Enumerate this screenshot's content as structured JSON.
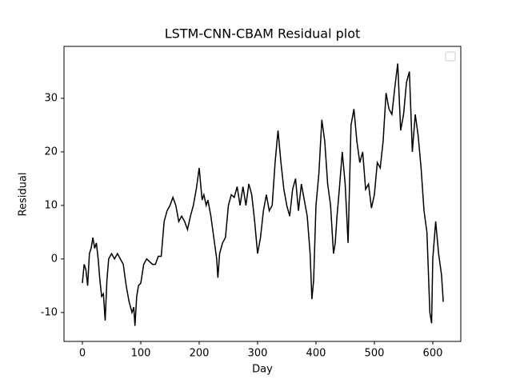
{
  "chart_data": {
    "type": "line",
    "title": "LSTM-CNN-CBAM Residual plot",
    "xlabel": "Day",
    "ylabel": "Residual",
    "x": [
      0,
      3,
      6,
      9,
      12,
      15,
      18,
      21,
      24,
      27,
      30,
      33,
      36,
      39,
      42,
      45,
      50,
      55,
      60,
      65,
      70,
      75,
      80,
      85,
      88,
      90,
      93,
      96,
      100,
      105,
      110,
      115,
      120,
      125,
      130,
      135,
      140,
      145,
      150,
      155,
      160,
      165,
      170,
      175,
      180,
      185,
      190,
      195,
      200,
      205,
      208,
      212,
      215,
      220,
      225,
      230,
      232,
      235,
      240,
      245,
      250,
      255,
      260,
      265,
      270,
      275,
      280,
      285,
      290,
      295,
      300,
      305,
      310,
      315,
      320,
      325,
      330,
      335,
      340,
      345,
      350,
      355,
      360,
      365,
      370,
      375,
      380,
      385,
      390,
      393,
      396,
      400,
      405,
      410,
      415,
      420,
      425,
      430,
      433,
      436,
      440,
      445,
      450,
      455,
      460,
      465,
      470,
      475,
      480,
      485,
      490,
      495,
      500,
      505,
      510,
      515,
      520,
      525,
      530,
      535,
      540,
      545,
      550,
      555,
      560,
      565,
      570,
      575,
      580,
      585,
      590,
      595,
      598,
      600,
      605,
      610,
      615,
      618
    ],
    "series": [
      {
        "name": "Residual",
        "color": "#000000",
        "values": [
          -4.5,
          -1,
          -2,
          -5,
          1,
          2,
          4,
          2,
          3,
          0,
          -4,
          -7,
          -6.5,
          -11.5,
          -4,
          0,
          1,
          0,
          1,
          0,
          -1,
          -5,
          -8,
          -10,
          -9,
          -12.5,
          -7,
          -5,
          -4.5,
          -1,
          0,
          -0.5,
          -1,
          -1,
          0.5,
          0.5,
          7,
          9,
          10,
          11.5,
          10,
          7,
          8,
          7,
          5.5,
          8,
          10,
          13,
          17,
          11,
          12,
          10,
          11,
          8,
          4,
          0,
          -3.5,
          1,
          3,
          4,
          10,
          12,
          11.5,
          13.5,
          10,
          13.5,
          10,
          14,
          12,
          7,
          1,
          4,
          9,
          12,
          9,
          10,
          18,
          24,
          18,
          13,
          10,
          8,
          13,
          15,
          9,
          14,
          11,
          8,
          1,
          -7.5,
          -4,
          10,
          16,
          26,
          22,
          14,
          10,
          1,
          3,
          8,
          13,
          20,
          14,
          3,
          25,
          28,
          22,
          18,
          20,
          13,
          14,
          9.5,
          12,
          18,
          17,
          22,
          31,
          28,
          27,
          32,
          36.5,
          24,
          27,
          33,
          35,
          20,
          27,
          23,
          17,
          9,
          5,
          -10,
          -12,
          0,
          7,
          1,
          -3,
          -8
        ]
      }
    ],
    "xlim": [
      -31.5,
      648
    ],
    "xticks": [
      0,
      100,
      200,
      300,
      400,
      500,
      600
    ],
    "ylim": [
      -15.4,
      39.7
    ],
    "yticks": [
      -10,
      0,
      10,
      20,
      30
    ]
  }
}
